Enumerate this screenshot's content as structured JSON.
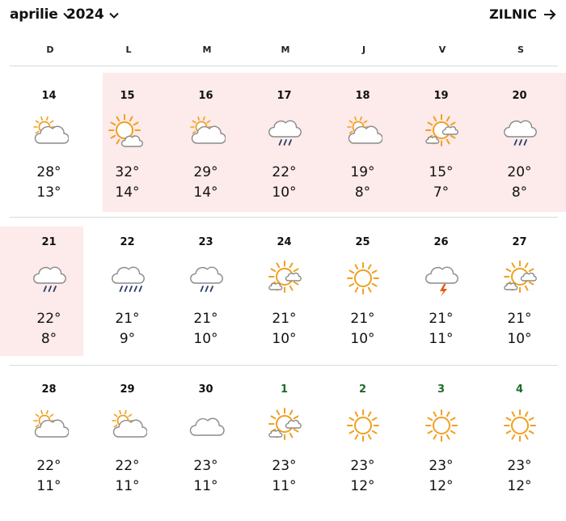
{
  "header": {
    "month": "aprilie",
    "year": "2024",
    "daily_label": "ZILNIC"
  },
  "weekdays": [
    "D",
    "L",
    "M",
    "M",
    "J",
    "V",
    "S"
  ],
  "weeks": [
    [
      {
        "date": "14",
        "icon": "partly-cloudy-icon",
        "hi": "28°",
        "lo": "13°"
      },
      {
        "date": "15",
        "icon": "sun-behind-cloud-icon",
        "hi": "32°",
        "lo": "14°"
      },
      {
        "date": "16",
        "icon": "partly-cloudy-icon",
        "hi": "29°",
        "lo": "14°"
      },
      {
        "date": "17",
        "icon": "rain-cloud-icon",
        "hi": "22°",
        "lo": "10°"
      },
      {
        "date": "18",
        "icon": "partly-cloudy-icon",
        "hi": "19°",
        "lo": "8°"
      },
      {
        "date": "19",
        "icon": "sun-with-clouds-icon",
        "hi": "15°",
        "lo": "7°"
      },
      {
        "date": "20",
        "icon": "rain-cloud-icon",
        "hi": "20°",
        "lo": "8°"
      }
    ],
    [
      {
        "date": "21",
        "icon": "rain-cloud-icon",
        "hi": "22°",
        "lo": "8°"
      },
      {
        "date": "22",
        "icon": "heavy-rain-cloud-icon",
        "hi": "21°",
        "lo": "9°"
      },
      {
        "date": "23",
        "icon": "rain-cloud-icon",
        "hi": "21°",
        "lo": "10°"
      },
      {
        "date": "24",
        "icon": "sun-with-clouds-icon",
        "hi": "21°",
        "lo": "10°"
      },
      {
        "date": "25",
        "icon": "sun-icon",
        "hi": "21°",
        "lo": "10°"
      },
      {
        "date": "26",
        "icon": "thunder-cloud-icon",
        "hi": "21°",
        "lo": "11°"
      },
      {
        "date": "27",
        "icon": "sun-with-clouds-icon",
        "hi": "21°",
        "lo": "10°"
      }
    ],
    [
      {
        "date": "28",
        "icon": "partly-cloudy-icon",
        "hi": "22°",
        "lo": "11°"
      },
      {
        "date": "29",
        "icon": "partly-cloudy-icon",
        "hi": "22°",
        "lo": "11°"
      },
      {
        "date": "30",
        "icon": "cloud-icon",
        "hi": "23°",
        "lo": "11°"
      },
      {
        "date": "1",
        "icon": "sun-with-clouds-icon",
        "hi": "23°",
        "lo": "11°"
      },
      {
        "date": "2",
        "icon": "sun-icon",
        "hi": "23°",
        "lo": "12°"
      },
      {
        "date": "3",
        "icon": "sun-icon",
        "hi": "23°",
        "lo": "12°"
      },
      {
        "date": "4",
        "icon": "sun-icon",
        "hi": "23°",
        "lo": "12°"
      }
    ]
  ],
  "colors": {
    "sun": "#f0a020",
    "cloud_stroke": "#8a8a8a",
    "rain": "#2a3f66",
    "bolt": "#e85a10",
    "highlight": "#fdeaea",
    "next_month_date": "#1f6b2a"
  }
}
